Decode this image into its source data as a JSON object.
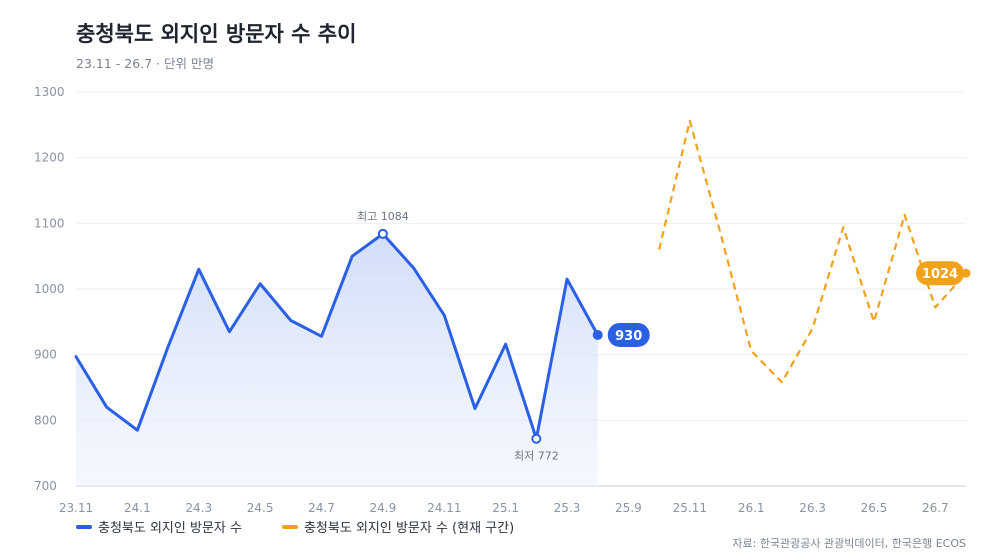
{
  "title": "충청북도 외지인 방문자 수 추이",
  "subtitle": "23.11 - 26.7 · 단위 만명",
  "source": "자료: 한국관광공사 관광빅데이터, 한국은행 ECOS",
  "colors": {
    "actual": "#2a5fe6",
    "forecast": "#f2a11c",
    "area": "#dbe6fb",
    "text": "#1f2430"
  },
  "chart_data": {
    "type": "line",
    "title": "충청북도 외지인 방문자 수 추이",
    "ylim": [
      700,
      1300
    ],
    "yticks": [
      700,
      800,
      900,
      1000,
      1100,
      1200,
      1300
    ],
    "xtick_labels": [
      "23.11",
      "24.1",
      "24.3",
      "24.5",
      "24.7",
      "24.9",
      "24.11",
      "25.1",
      "25.3",
      "25.9",
      "25.11",
      "26.1",
      "26.3",
      "26.5",
      "26.7"
    ],
    "series": [
      {
        "name": "충청북도 외지인 방문자 수",
        "values": [
          897,
          820,
          785,
          912,
          1030,
          935,
          1008,
          952,
          928,
          1050,
          1084,
          1032,
          960,
          818,
          916,
          772,
          1015,
          930
        ]
      },
      {
        "name": "충청북도 외지인 방문자 수 (현재 구간)",
        "values": [
          1060,
          1256,
          1085,
          906,
          858,
          940,
          1094,
          950,
          1113,
          972,
          1024
        ]
      }
    ],
    "annotations": [
      {
        "text": "최고 1084",
        "series": 0,
        "index": 10
      },
      {
        "text": "최저 772",
        "series": 0,
        "index": 15
      }
    ],
    "end_labels": [
      "930",
      "1024"
    ],
    "grid": true,
    "legend": "bottom-left"
  }
}
